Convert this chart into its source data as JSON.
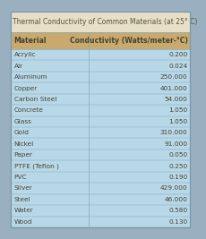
{
  "title": "Thermal Conductivity of Common Materials (at 25° C)",
  "col_headers": [
    "Material",
    "Conductivity (Watts/meter-°C)"
  ],
  "rows": [
    [
      "Acrylic",
      "0.200"
    ],
    [
      "Air",
      "0.024"
    ],
    [
      "Aluminum",
      "250.000"
    ],
    [
      "Copper",
      "401.000"
    ],
    [
      "Carbon Steel",
      "54.000"
    ],
    [
      "Concrete",
      "1.050"
    ],
    [
      "Glass",
      "1.050"
    ],
    [
      "Gold",
      "310.000"
    ],
    [
      "Nickel",
      "91.000"
    ],
    [
      "Paper",
      "0.050"
    ],
    [
      "PTFE (Teflon )",
      "0.250"
    ],
    [
      "PVC",
      "0.190"
    ],
    [
      "Silver",
      "429.000"
    ],
    [
      "Steel",
      "46.000"
    ],
    [
      "Water",
      "0.580"
    ],
    [
      "Wood",
      "0.130"
    ]
  ],
  "table_bg": "#b8d8e8",
  "header_bg": "#c8a96e",
  "title_bg": "#e8dfc8",
  "outer_bg": "#9ab0c0",
  "title_color": "#555544",
  "header_text_color": "#444433",
  "row_text_color": "#444433",
  "line_color": "#8aaabb",
  "outer_border_color": "#7a9aaa",
  "title_fontsize": 5.5,
  "header_fontsize": 5.6,
  "row_fontsize": 5.3,
  "col_split": 0.435
}
